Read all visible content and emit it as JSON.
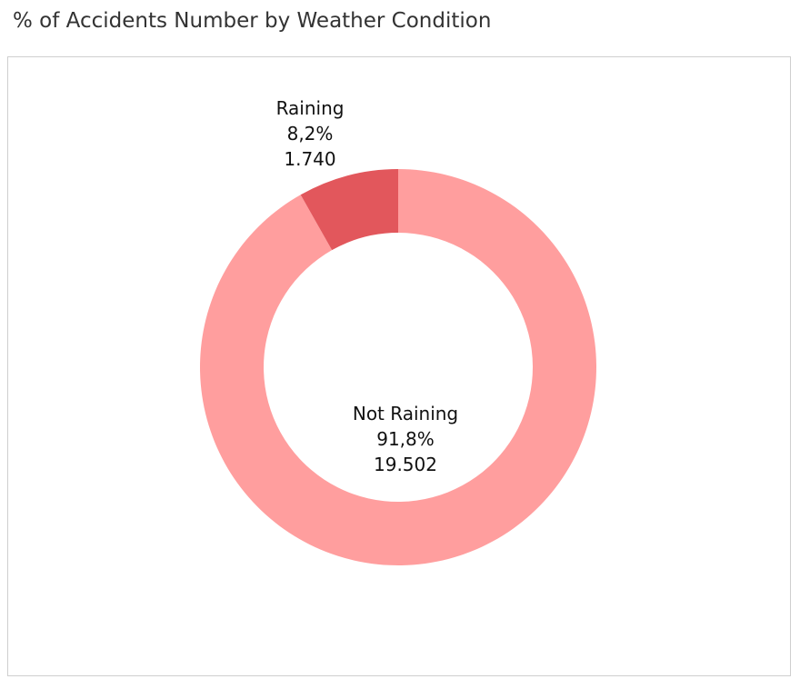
{
  "chart_data": {
    "type": "pie",
    "title": "% of Accidents Number by Weather Condition",
    "donut": true,
    "slices": [
      {
        "name": "Not Raining",
        "value": 19502,
        "percent_label": "91,8%",
        "value_label": "19.502",
        "color": "#ff9e9e"
      },
      {
        "name": "Raining",
        "value": 1740,
        "percent_label": "8,2%",
        "value_label": "1.740",
        "color": "#e2575c"
      }
    ]
  }
}
